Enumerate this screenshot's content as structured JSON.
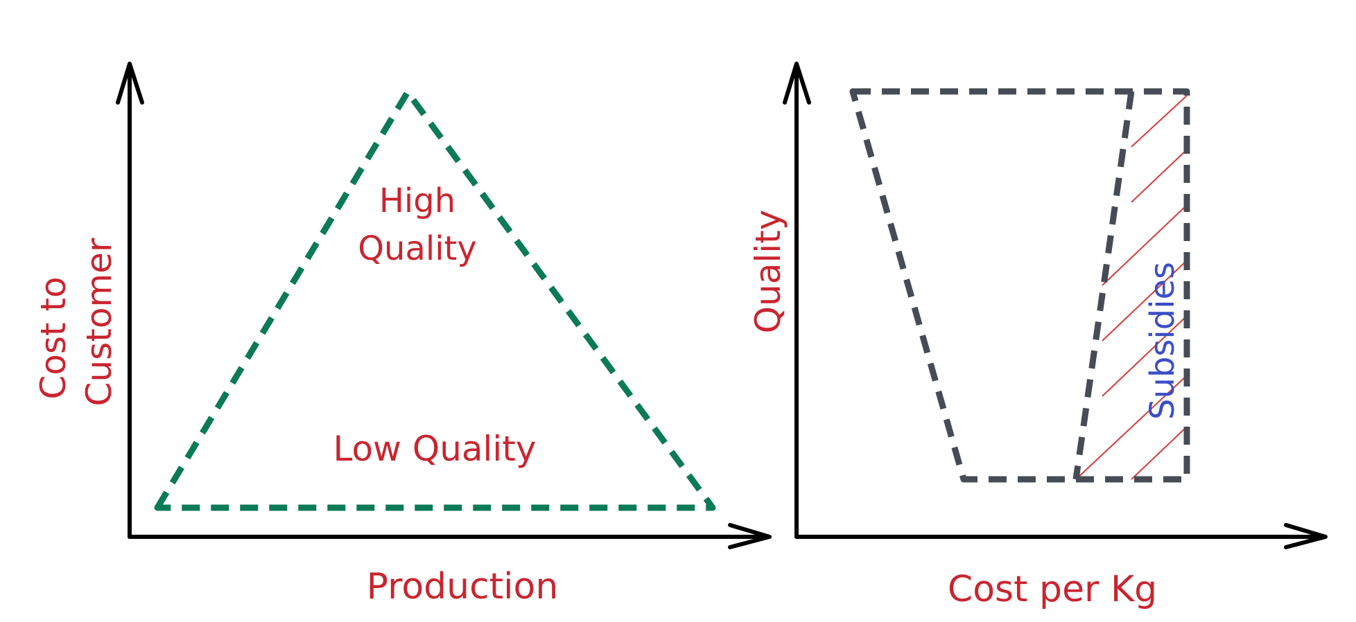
{
  "colors": {
    "axis": "#000000",
    "triangle": "#0b7a57",
    "trapezoid": "#464c55",
    "label_red": "#c9252f",
    "label_blue": "#3b4ec6",
    "hatch": "#d63a3a"
  },
  "left_diagram": {
    "y_axis_label_line1": "Cost to",
    "y_axis_label_line2": "Customer",
    "x_axis_label": "Production",
    "top_region_line1": "High",
    "top_region_line2": "Quality",
    "bottom_region": "Low Quality"
  },
  "right_diagram": {
    "y_axis_label": "Quality",
    "x_axis_label": "Cost per Kg",
    "hatched_region_label": "Subsidies"
  }
}
